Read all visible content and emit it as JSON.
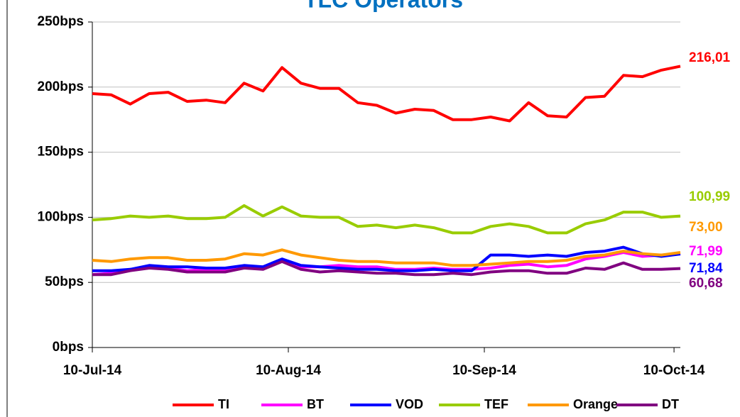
{
  "chart_data": {
    "type": "line",
    "title": "TLC Operators",
    "x": [
      "2014-07-10",
      "2014-07-13",
      "2014-07-16",
      "2014-07-19",
      "2014-07-22",
      "2014-07-25",
      "2014-07-28",
      "2014-07-31",
      "2014-08-03",
      "2014-08-06",
      "2014-08-09",
      "2014-08-12",
      "2014-08-15",
      "2014-08-18",
      "2014-08-21",
      "2014-08-24",
      "2014-08-27",
      "2014-08-30",
      "2014-09-02",
      "2014-09-05",
      "2014-09-08",
      "2014-09-11",
      "2014-09-14",
      "2014-09-17",
      "2014-09-20",
      "2014-09-23",
      "2014-09-26",
      "2014-09-29",
      "2014-10-02",
      "2014-10-05",
      "2014-10-08",
      "2014-10-11"
    ],
    "series": [
      {
        "name": "TI",
        "color": "#ff0000",
        "values": [
          195,
          194,
          187,
          195,
          196,
          189,
          190,
          188,
          203,
          197,
          215,
          203,
          199,
          199,
          188,
          186,
          180,
          183,
          182,
          175,
          175,
          177,
          174,
          188,
          178,
          177,
          192,
          193,
          209,
          208,
          213,
          216.01
        ],
        "end_label": "216,01"
      },
      {
        "name": "BT",
        "color": "#ff00ff",
        "values": [
          56,
          57,
          60,
          61,
          61,
          59,
          60,
          60,
          61,
          62,
          67,
          62,
          62,
          63,
          62,
          62,
          60,
          60,
          61,
          60,
          60,
          61,
          63,
          64,
          62,
          63,
          68,
          70,
          73,
          70,
          71,
          71.99
        ],
        "end_label": "71,99"
      },
      {
        "name": "VOD",
        "color": "#0000ff",
        "values": [
          59,
          59,
          60,
          63,
          62,
          62,
          61,
          61,
          63,
          62,
          68,
          63,
          62,
          61,
          60,
          60,
          59,
          59,
          60,
          59,
          59,
          71,
          71,
          70,
          71,
          70,
          73,
          74,
          77,
          72,
          70,
          71.84
        ],
        "end_label": "71,84"
      },
      {
        "name": "TEF",
        "color": "#99cc00",
        "values": [
          98,
          99,
          101,
          100,
          101,
          99,
          99,
          100,
          109,
          101,
          108,
          101,
          100,
          100,
          93,
          94,
          92,
          94,
          92,
          88,
          88,
          93,
          95,
          93,
          88,
          88,
          95,
          98,
          104,
          104,
          100,
          100.99
        ],
        "end_label": "100,99"
      },
      {
        "name": "Orange",
        "color": "#ff9900",
        "values": [
          67,
          66,
          68,
          69,
          69,
          67,
          67,
          68,
          72,
          71,
          75,
          71,
          69,
          67,
          66,
          66,
          65,
          65,
          65,
          63,
          63,
          64,
          65,
          66,
          66,
          67,
          70,
          71,
          74,
          72,
          71,
          73.0
        ],
        "end_label": "73,00"
      },
      {
        "name": "DT",
        "color": "#800080",
        "values": [
          56,
          56,
          59,
          61,
          60,
          58,
          58,
          58,
          61,
          60,
          66,
          60,
          58,
          59,
          58,
          57,
          57,
          56,
          56,
          57,
          56,
          58,
          59,
          59,
          57,
          57,
          61,
          60,
          65,
          60,
          60,
          60.68
        ],
        "end_label": "60,68"
      }
    ],
    "xlim": [
      "2014-07-10",
      "2014-10-11"
    ],
    "xticks": [
      {
        "value": "2014-07-10",
        "label": "10-Jul-14"
      },
      {
        "value": "2014-08-10",
        "label": "10-Aug-14"
      },
      {
        "value": "2014-09-10",
        "label": "10-Sep-14"
      },
      {
        "value": "2014-10-10",
        "label": "10-Oct-14"
      }
    ],
    "ylim": [
      0,
      250
    ],
    "yticks": [
      {
        "value": 0,
        "label": "0bps"
      },
      {
        "value": 50,
        "label": "50bps"
      },
      {
        "value": 100,
        "label": "100bps"
      },
      {
        "value": 150,
        "label": "150bps"
      },
      {
        "value": 200,
        "label": "200bps"
      },
      {
        "value": 250,
        "label": "250bps"
      }
    ],
    "grid": true,
    "legend": "bottom"
  }
}
